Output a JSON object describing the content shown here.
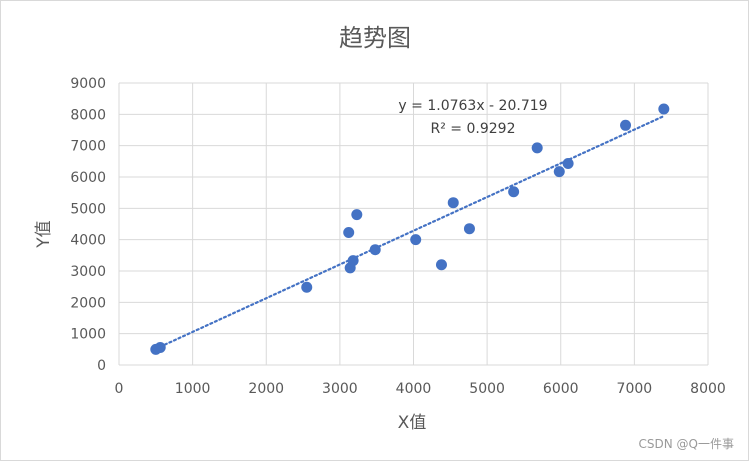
{
  "chart_data": {
    "type": "scatter",
    "title": "趋势图",
    "xlabel": "X值",
    "ylabel": "Y值",
    "xlim": [
      0,
      8000
    ],
    "ylim": [
      0,
      9000
    ],
    "x_ticks": [
      "0",
      "1000",
      "2000",
      "3000",
      "4000",
      "5000",
      "6000",
      "7000",
      "8000"
    ],
    "y_ticks": [
      "0",
      "1000",
      "2000",
      "3000",
      "4000",
      "5000",
      "6000",
      "7000",
      "8000",
      "9000"
    ],
    "grid": true,
    "legend": "none",
    "marker_color": "#4472c4",
    "points": [
      {
        "x": 500,
        "y": 500
      },
      {
        "x": 560,
        "y": 560
      },
      {
        "x": 2550,
        "y": 2480
      },
      {
        "x": 3140,
        "y": 3100
      },
      {
        "x": 3180,
        "y": 3330
      },
      {
        "x": 3120,
        "y": 4230
      },
      {
        "x": 3230,
        "y": 4800
      },
      {
        "x": 3480,
        "y": 3680
      },
      {
        "x": 4030,
        "y": 4000
      },
      {
        "x": 4380,
        "y": 3200
      },
      {
        "x": 4540,
        "y": 5180
      },
      {
        "x": 4760,
        "y": 4350
      },
      {
        "x": 5360,
        "y": 5530
      },
      {
        "x": 5680,
        "y": 6930
      },
      {
        "x": 5980,
        "y": 6170
      },
      {
        "x": 6100,
        "y": 6430
      },
      {
        "x": 6880,
        "y": 7650
      },
      {
        "x": 7400,
        "y": 8170
      }
    ],
    "trendline": {
      "type": "linear",
      "slope": 1.0763,
      "intercept": -20.719,
      "equation": "y = 1.0763x - 20.719",
      "r2": "R² = 0.9292",
      "x_range": [
        500,
        7400
      ]
    }
  },
  "watermark": "CSDN @Q一件事"
}
